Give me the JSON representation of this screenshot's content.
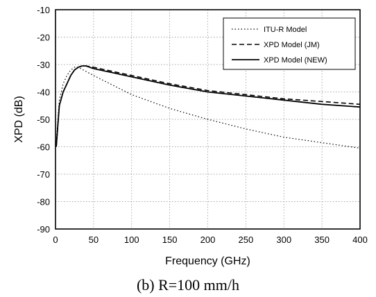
{
  "chart_data": {
    "type": "line",
    "title": "",
    "xlabel": "Frequency (GHz)",
    "ylabel": "XPD (dB)",
    "xlim": [
      0,
      400
    ],
    "ylim": [
      -90,
      -10
    ],
    "xticks": [
      "0",
      "50",
      "100",
      "150",
      "200",
      "250",
      "300",
      "350",
      "400"
    ],
    "yticks": [
      "-10",
      "-20",
      "-30",
      "-40",
      "-50",
      "-60",
      "-70",
      "-80",
      "-90"
    ],
    "grid": true,
    "legend_position": "top-right",
    "series": [
      {
        "name": "ITU-R Model",
        "style": "dotted",
        "color": "#000000",
        "x": [
          1,
          5,
          10,
          15,
          20,
          25,
          30,
          40,
          50,
          75,
          100,
          150,
          200,
          250,
          300,
          350,
          400
        ],
        "y": [
          -58,
          -43,
          -37,
          -34,
          -32,
          -31,
          -31,
          -32.5,
          -34,
          -37.5,
          -41,
          -46,
          -50,
          -53.5,
          -56.5,
          -58.5,
          -60.5
        ]
      },
      {
        "name": "XPD Model (JM)",
        "style": "dashed",
        "color": "#000000",
        "x": [
          1,
          5,
          10,
          15,
          20,
          25,
          30,
          35,
          40,
          50,
          75,
          100,
          150,
          200,
          250,
          300,
          350,
          400
        ],
        "y": [
          -60,
          -45,
          -40,
          -37,
          -34,
          -32,
          -31,
          -30.5,
          -30.5,
          -31,
          -32.5,
          -34,
          -37,
          -39.5,
          -41,
          -42.5,
          -43.5,
          -44.5
        ]
      },
      {
        "name": "XPD Model (NEW)",
        "style": "solid",
        "color": "#000000",
        "x": [
          1,
          5,
          10,
          15,
          20,
          25,
          30,
          35,
          40,
          50,
          75,
          100,
          150,
          200,
          250,
          300,
          350,
          400
        ],
        "y": [
          -60,
          -45,
          -40,
          -37,
          -34,
          -32,
          -31,
          -30.5,
          -30.5,
          -31.5,
          -33,
          -34.5,
          -37.5,
          -40,
          -41.5,
          -43,
          -44.5,
          -45.5
        ]
      }
    ]
  },
  "caption": "(b) R=100 mm/h"
}
